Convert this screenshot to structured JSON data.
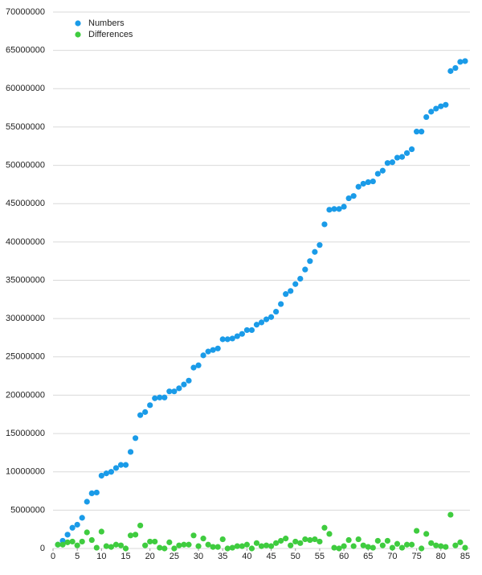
{
  "chart_data": {
    "type": "scatter",
    "x": [
      1,
      2,
      3,
      4,
      5,
      6,
      7,
      8,
      9,
      10,
      11,
      12,
      13,
      14,
      15,
      16,
      17,
      18,
      19,
      20,
      21,
      22,
      23,
      24,
      25,
      26,
      27,
      28,
      29,
      30,
      31,
      32,
      33,
      34,
      35,
      36,
      37,
      38,
      39,
      40,
      41,
      42,
      43,
      44,
      45,
      46,
      47,
      48,
      49,
      50,
      51,
      52,
      53,
      54,
      55,
      56,
      57,
      58,
      59,
      60,
      61,
      62,
      63,
      64,
      65,
      66,
      67,
      68,
      69,
      70,
      71,
      72,
      73,
      74,
      75,
      76,
      77,
      78,
      79,
      80,
      81,
      82,
      83,
      84,
      85
    ],
    "series": [
      {
        "name": "Numbers",
        "color": "#1a9be8",
        "values": [
          500000,
          1000000,
          1800000,
          2700000,
          3100000,
          4000000,
          6100000,
          7200000,
          7300000,
          9500000,
          9800000,
          10000000,
          10500000,
          10900000,
          10900000,
          12600000,
          14400000,
          17400000,
          17800000,
          18700000,
          19600000,
          19700000,
          19700000,
          20500000,
          20500000,
          20900000,
          21400000,
          21900000,
          23600000,
          23900000,
          25200000,
          25700000,
          25900000,
          26100000,
          27300000,
          27300000,
          27400000,
          27700000,
          28000000,
          28500000,
          28500000,
          29200000,
          29500000,
          29900000,
          30200000,
          30900000,
          31900000,
          33200000,
          33600000,
          34500000,
          35200000,
          36400000,
          37500000,
          38700000,
          39600000,
          42300000,
          44200000,
          44300000,
          44300000,
          44600000,
          45700000,
          46000000,
          47200000,
          47600000,
          47800000,
          47900000,
          48900000,
          49300000,
          50300000,
          50400000,
          51000000,
          51100000,
          51600000,
          52100000,
          54400000,
          54400000,
          56300000,
          57000000,
          57400000,
          57700000,
          57900000,
          62300000,
          62700000,
          63500000,
          63600000
        ]
      },
      {
        "name": "Differences",
        "color": "#3fcc3f",
        "values": [
          500000,
          500000,
          800000,
          900000,
          400000,
          900000,
          2100000,
          1100000,
          100000,
          2200000,
          300000,
          200000,
          500000,
          400000,
          0,
          1700000,
          1800000,
          3000000,
          400000,
          900000,
          900000,
          100000,
          0,
          800000,
          0,
          400000,
          500000,
          500000,
          1700000,
          300000,
          1300000,
          500000,
          200000,
          200000,
          1200000,
          0,
          100000,
          300000,
          300000,
          500000,
          0,
          700000,
          300000,
          400000,
          300000,
          700000,
          1000000,
          1300000,
          400000,
          900000,
          700000,
          1200000,
          1100000,
          1200000,
          900000,
          2700000,
          1900000,
          100000,
          0,
          300000,
          1100000,
          300000,
          1200000,
          400000,
          200000,
          100000,
          1000000,
          400000,
          1000000,
          100000,
          600000,
          100000,
          500000,
          500000,
          2300000,
          0,
          1900000,
          700000,
          400000,
          300000,
          200000,
          4400000,
          400000,
          800000,
          100000
        ]
      }
    ],
    "xlim": [
      0,
      86
    ],
    "xticks": [
      0,
      5,
      10,
      15,
      20,
      25,
      30,
      35,
      40,
      45,
      50,
      55,
      60,
      65,
      70,
      75,
      80,
      85
    ],
    "ylim": [
      0,
      70000000
    ],
    "yticks": [
      0,
      5000000,
      10000000,
      15000000,
      20000000,
      25000000,
      30000000,
      35000000,
      40000000,
      45000000,
      50000000,
      55000000,
      60000000,
      65000000,
      70000000
    ],
    "grid": true,
    "legend": "upper-left"
  }
}
